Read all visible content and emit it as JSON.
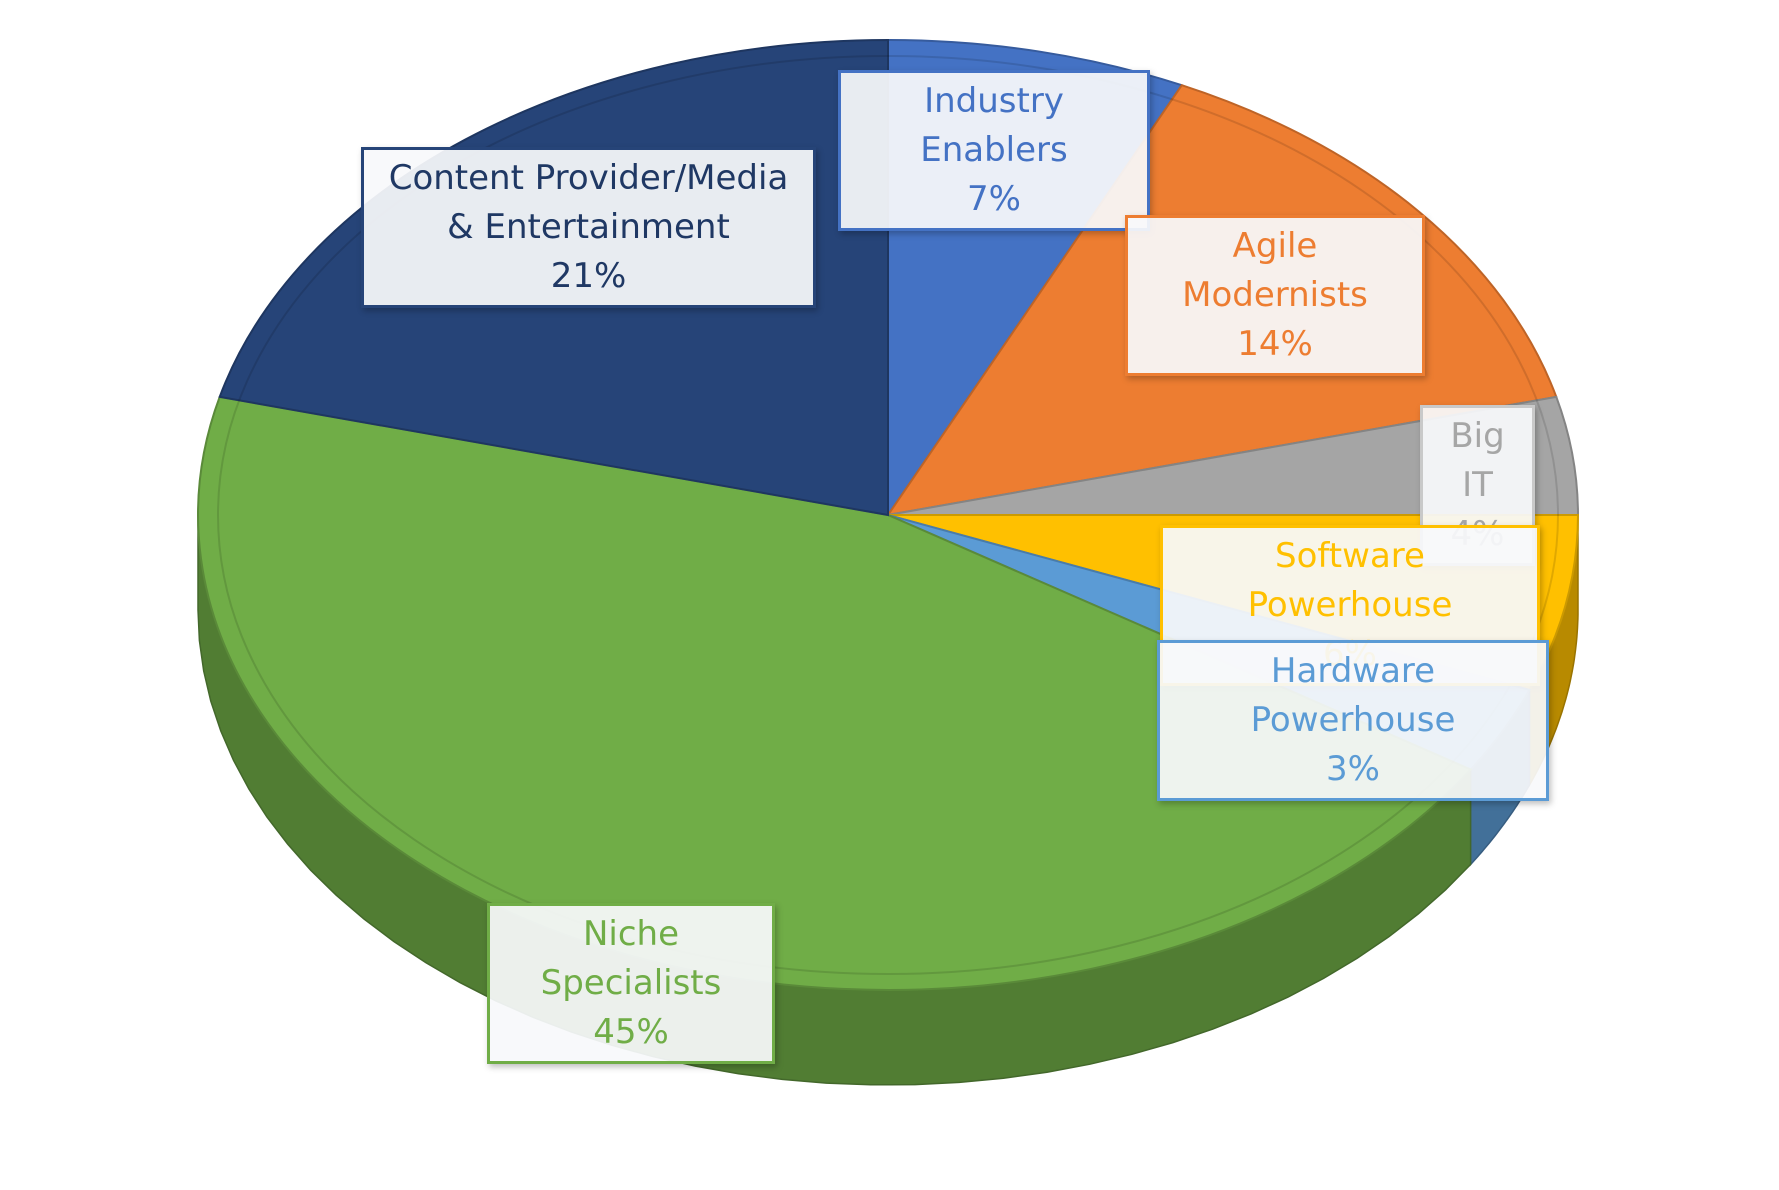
{
  "chart_data": {
    "type": "pie",
    "title": "",
    "slices": [
      {
        "label": "Industry Enablers",
        "value": 7,
        "display": "7%",
        "color": "#4472C4"
      },
      {
        "label": "Agile Modernists",
        "value": 14,
        "display": "14%",
        "color": "#ED7D31"
      },
      {
        "label": "Big IT",
        "value": 4,
        "display": "4%",
        "color": "#A5A5A5"
      },
      {
        "label": "Software Powerhouse",
        "value": 6,
        "display": "6%",
        "color": "#FFC000"
      },
      {
        "label": "Hardware Powerhouse",
        "value": 3,
        "display": "3%",
        "color": "#5B9BD5"
      },
      {
        "label": "Niche Specialists",
        "value": 45,
        "display": "45%",
        "color": "#70AD47"
      },
      {
        "label": "Content Provider/Media & Entertainment",
        "value": 21,
        "display": "21%",
        "color": "#264478"
      }
    ],
    "legend": "none",
    "style": "3d-tilted-pie"
  }
}
